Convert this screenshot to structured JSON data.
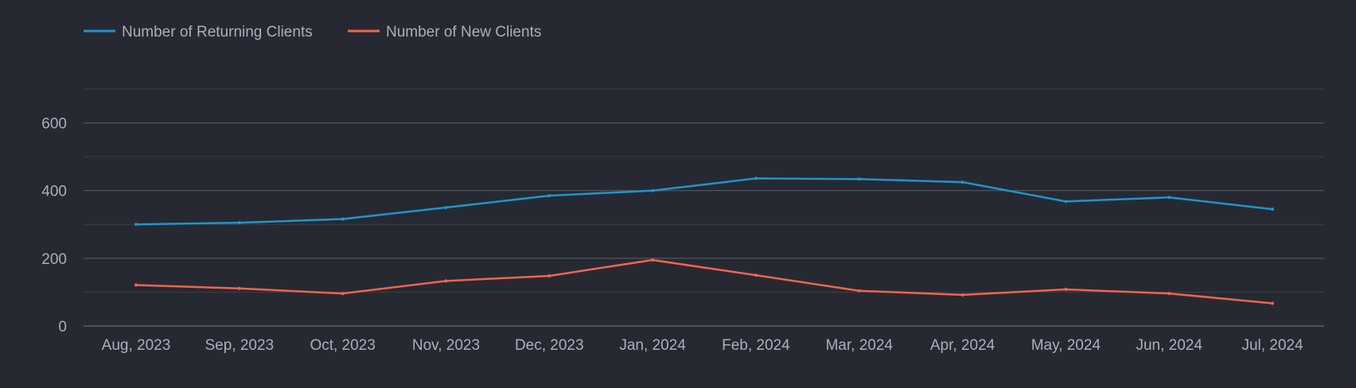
{
  "colors": {
    "background": "#262932",
    "grid_major": "#5a5f6b",
    "grid_minor": "#3b3f4a",
    "text": "#a9b0bb"
  },
  "chart_data": {
    "type": "line",
    "title": "",
    "xlabel": "",
    "ylabel": "",
    "categories": [
      "Aug, 2023",
      "Sep, 2023",
      "Oct, 2023",
      "Nov, 2023",
      "Dec, 2023",
      "Jan, 2024",
      "Feb, 2024",
      "Mar, 2024",
      "Apr, 2024",
      "May, 2024",
      "Jun, 2024",
      "Jul, 2024"
    ],
    "ylim": [
      0,
      700
    ],
    "yticks": [
      0,
      200,
      400,
      600
    ],
    "ytick_labels": [
      "0",
      "200",
      "400",
      "600"
    ],
    "grid": true,
    "legend_position": "top-left",
    "series": [
      {
        "name": "Number of Returning Clients",
        "color": "#1e96c8",
        "values": [
          300,
          305,
          316,
          350,
          385,
          400,
          436,
          434,
          425,
          368,
          380,
          345
        ]
      },
      {
        "name": "Number of New Clients",
        "color": "#f0644f",
        "values": [
          121,
          111,
          96,
          133,
          148,
          195,
          150,
          104,
          92,
          108,
          96,
          67
        ]
      }
    ]
  }
}
